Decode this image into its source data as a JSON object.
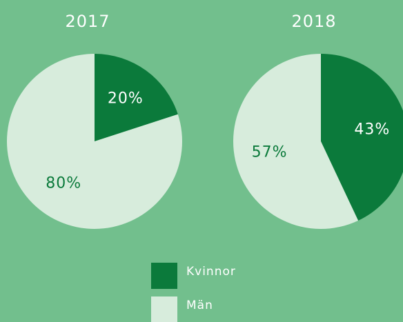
{
  "chart_data": [
    {
      "type": "pie",
      "title": "2017",
      "categories": [
        "Kvinnor",
        "Män"
      ],
      "values": [
        20,
        80
      ],
      "value_labels": [
        "20%",
        "80%"
      ],
      "colors": [
        "#0b7a3b",
        "#d7ecdc"
      ]
    },
    {
      "type": "pie",
      "title": "2018",
      "categories": [
        "Kvinnor",
        "Män"
      ],
      "values": [
        43,
        57
      ],
      "value_labels": [
        "43%",
        "57%"
      ],
      "colors": [
        "#0b7a3b",
        "#d7ecdc"
      ]
    }
  ]
}
